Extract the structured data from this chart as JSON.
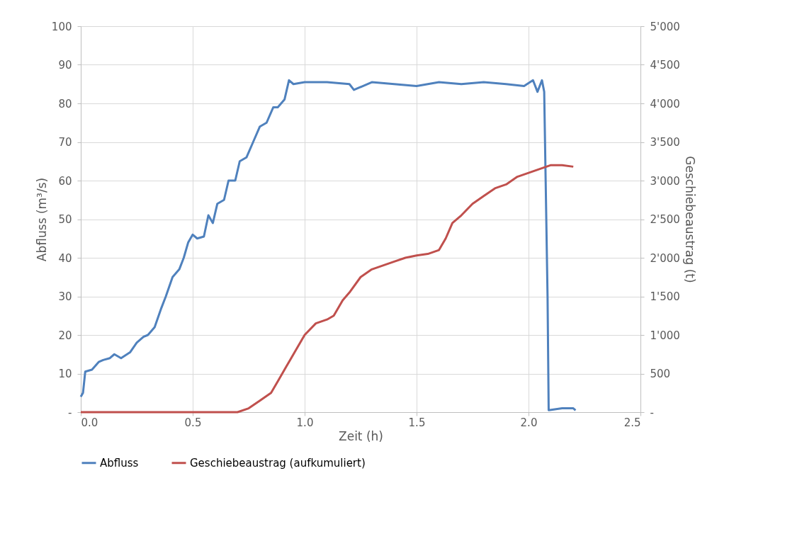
{
  "chart_data": {
    "type": "line",
    "xlabel": "Zeit (h)",
    "ylabel": "Abfluss (m³/s)",
    "y2label": "Geschiebeaustrag (t)",
    "xlim": [
      0,
      2.5
    ],
    "xticks": [
      {
        "value": 0,
        "label": "0.0"
      },
      0.5,
      {
        "value": 1,
        "label": "1.0"
      },
      1.5,
      {
        "value": 2,
        "label": "2.0"
      },
      2.5
    ],
    "ylim": [
      0,
      100
    ],
    "yticks": [
      {
        "value": 0,
        "label": "-"
      },
      10,
      20,
      30,
      40,
      50,
      60,
      70,
      80,
      90,
      100
    ],
    "y2lim": [
      0,
      5000
    ],
    "y2ticks": [
      {
        "value": 0,
        "label": "-"
      },
      500,
      {
        "value": 1000,
        "label": "1'000"
      },
      {
        "value": 1500,
        "label": "1'500"
      },
      {
        "value": 2000,
        "label": "2'000"
      },
      {
        "value": 2500,
        "label": "2'500"
      },
      {
        "value": 3000,
        "label": "3'000"
      },
      {
        "value": 3500,
        "label": "3'500"
      },
      {
        "value": 4000,
        "label": "4'000"
      },
      {
        "value": 4500,
        "label": "4'500"
      },
      {
        "value": 5000,
        "label": "5'000"
      }
    ],
    "grid": true,
    "legend": "bottom",
    "line_style": "solid",
    "marker": "none",
    "series": [
      {
        "name": "Abfluss",
        "color": "#4f81bd",
        "x": [
          0,
          0.01,
          0.02,
          0.05,
          0.08,
          0.1,
          0.13,
          0.15,
          0.18,
          0.22,
          0.25,
          0.28,
          0.3,
          0.33,
          0.36,
          0.38,
          0.41,
          0.44,
          0.46,
          0.48,
          0.5,
          0.52,
          0.55,
          0.57,
          0.59,
          0.61,
          0.64,
          0.66,
          0.69,
          0.71,
          0.74,
          0.77,
          0.8,
          0.83,
          0.86,
          0.88,
          0.91,
          0.93,
          0.95,
          1.0,
          1.1,
          1.2,
          1.22,
          1.3,
          1.4,
          1.5,
          1.6,
          1.7,
          1.8,
          1.9,
          1.98,
          2.02,
          2.04,
          2.06,
          2.07,
          2.085,
          2.09,
          2.15,
          2.2,
          2.21
        ],
        "values": [
          4,
          5,
          10.5,
          11,
          13,
          13.5,
          14,
          15,
          14,
          15.5,
          18,
          19.5,
          20,
          22,
          27,
          30,
          35,
          37,
          40,
          44,
          46,
          45,
          45.5,
          51,
          49,
          54,
          55,
          60,
          60,
          65,
          66,
          70,
          74,
          75,
          79,
          79,
          81,
          86,
          85,
          85.5,
          85.5,
          85,
          83.5,
          85.5,
          85,
          84.5,
          85.5,
          85,
          85.5,
          85,
          84.5,
          86,
          83,
          86,
          83,
          30,
          0.5,
          1,
          1,
          0.5
        ]
      },
      {
        "name": "Geschiebeaustrag (aufkumuliert)",
        "color": "#c0504d",
        "axis": "y2",
        "x": [
          0,
          0.2,
          0.4,
          0.6,
          0.7,
          0.75,
          0.8,
          0.85,
          0.88,
          0.92,
          0.96,
          1.0,
          1.05,
          1.1,
          1.13,
          1.17,
          1.2,
          1.25,
          1.3,
          1.35,
          1.4,
          1.45,
          1.5,
          1.55,
          1.6,
          1.63,
          1.66,
          1.7,
          1.75,
          1.8,
          1.85,
          1.9,
          1.95,
          2.0,
          2.05,
          2.1,
          2.15,
          2.2
        ],
        "values": [
          0,
          0,
          0,
          0,
          0,
          50,
          150,
          250,
          400,
          600,
          800,
          1000,
          1150,
          1200,
          1250,
          1450,
          1550,
          1750,
          1850,
          1900,
          1950,
          2000,
          2030,
          2050,
          2100,
          2250,
          2450,
          2550,
          2700,
          2800,
          2900,
          2950,
          3050,
          3100,
          3150,
          3200,
          3200,
          3180
        ]
      }
    ]
  }
}
